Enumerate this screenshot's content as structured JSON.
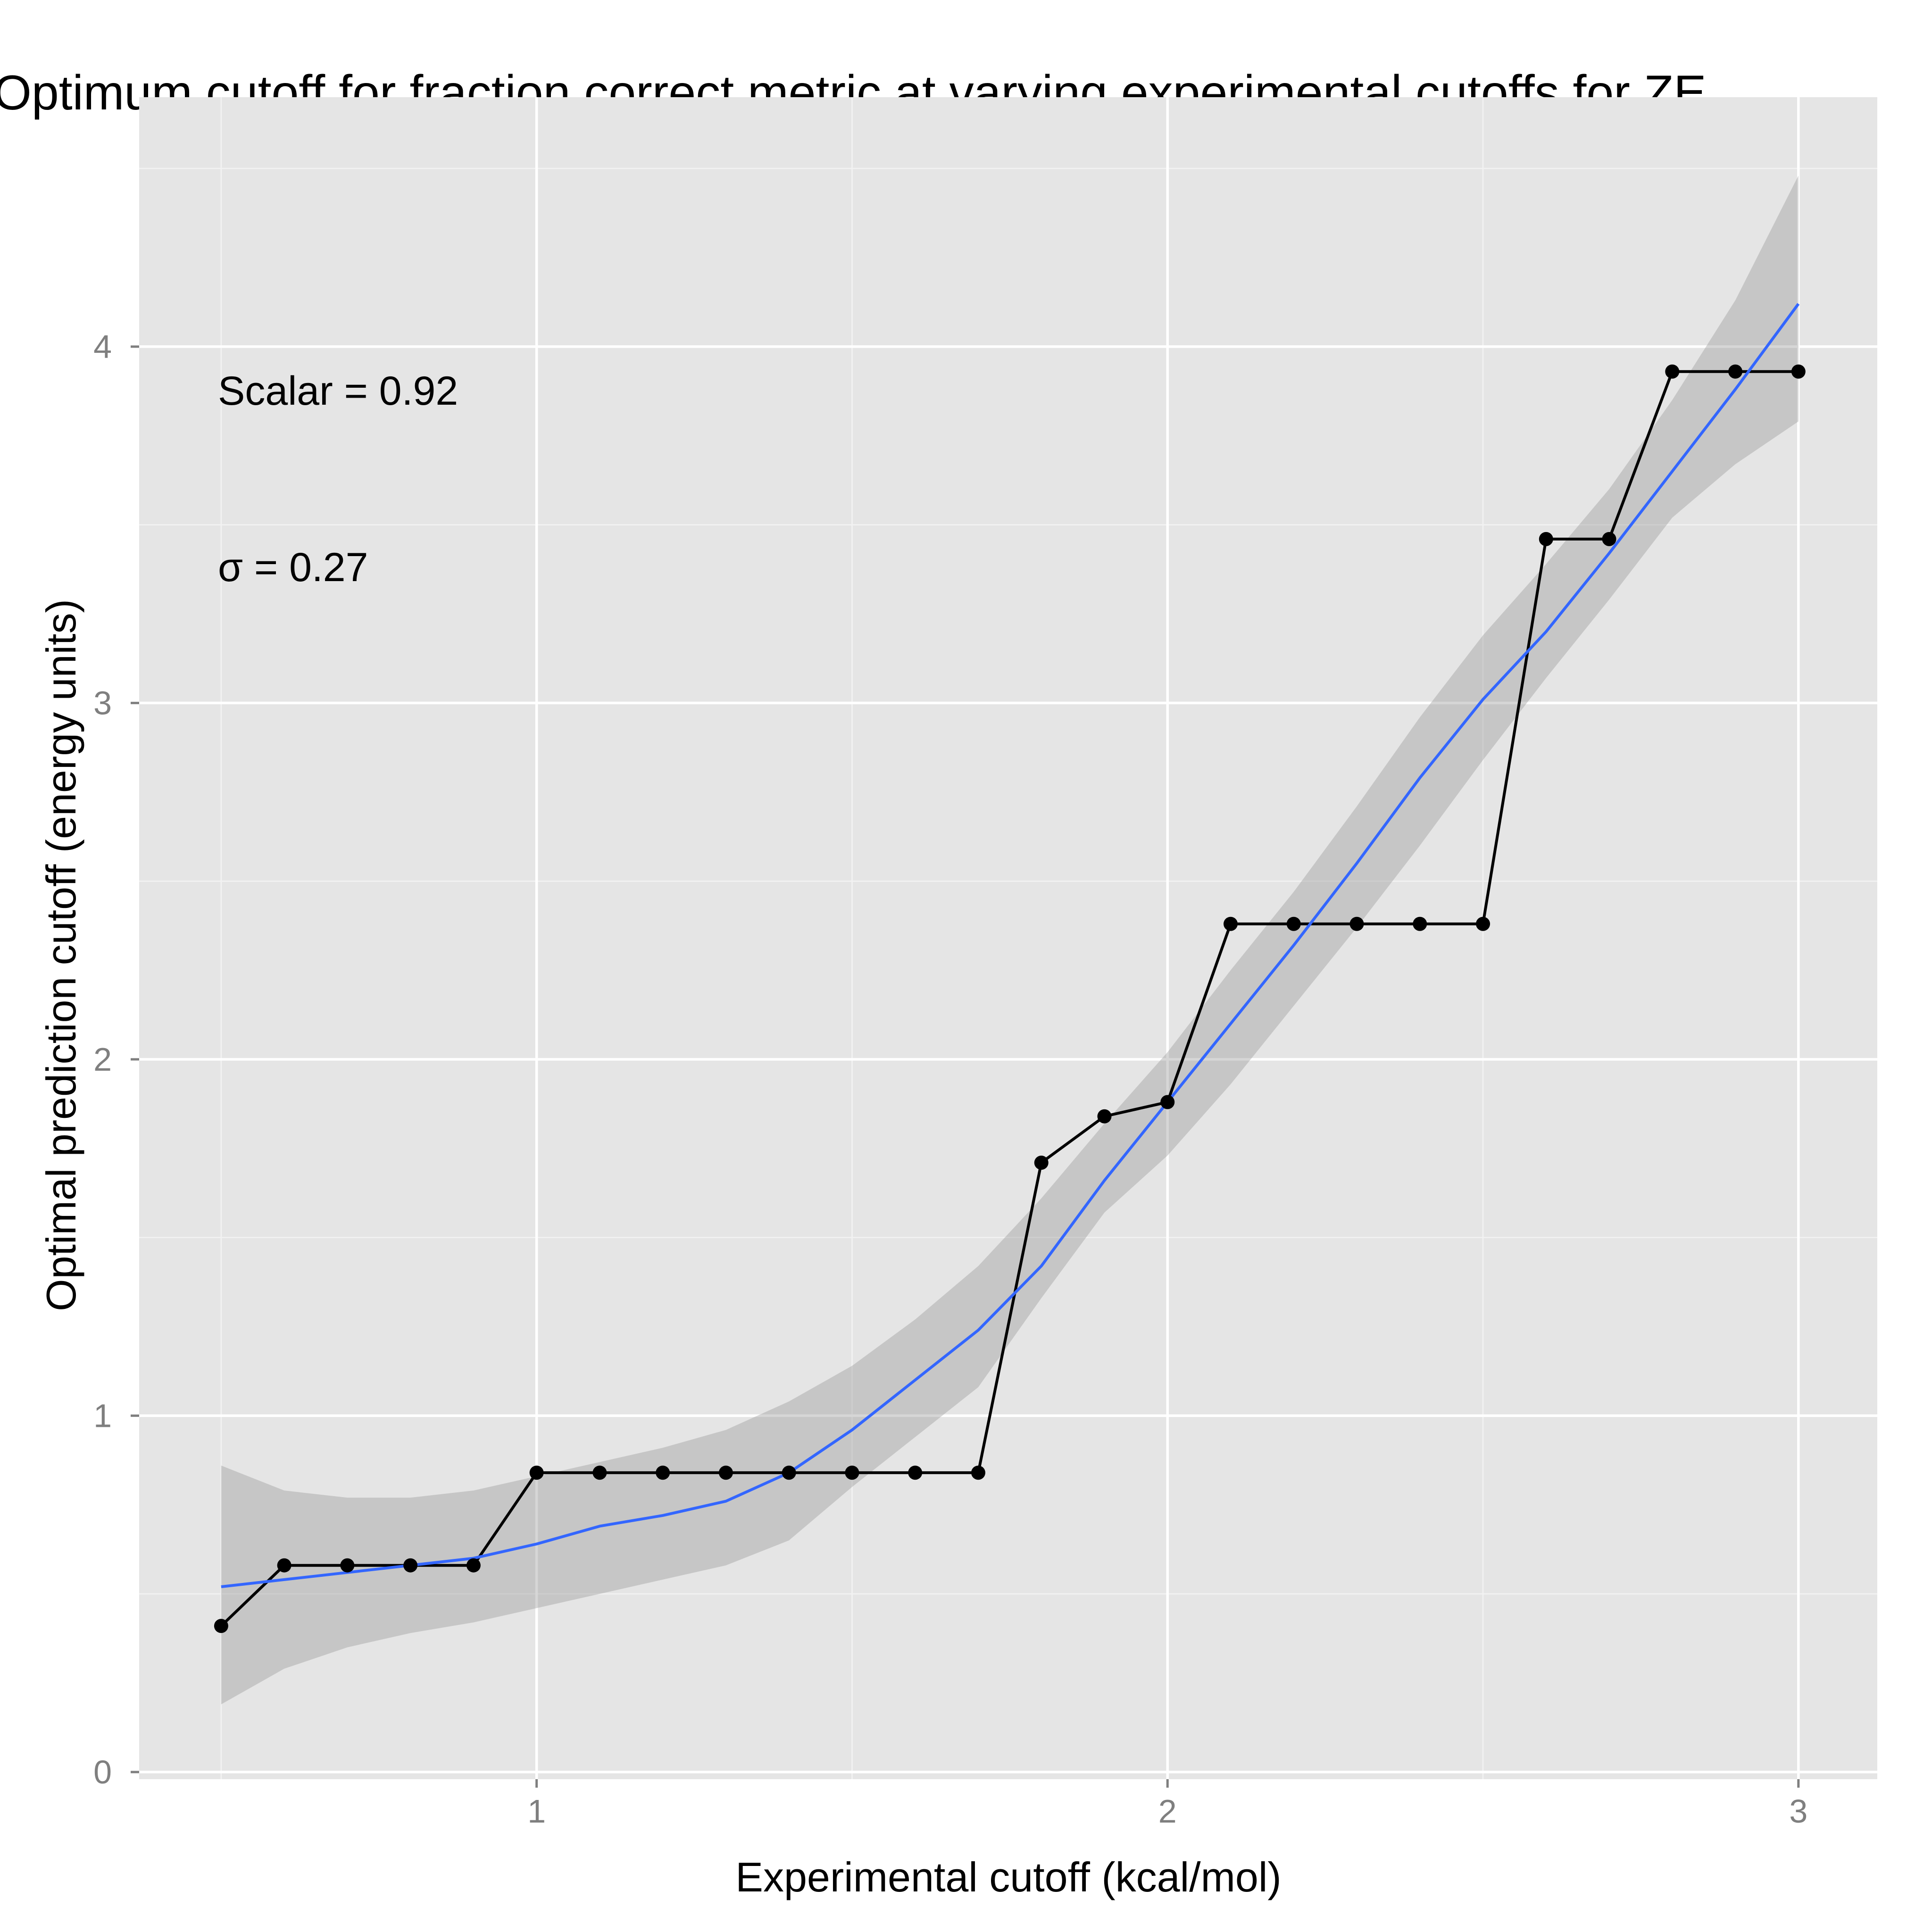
{
  "chart_data": {
    "type": "line",
    "title": "Optimum cutoff for fraction correct metric at varying experimental cutoffs for ZE",
    "xlabel": "Experimental cutoff (kcal/mol)",
    "ylabel": "Optimal prediction cutoff (energy units)",
    "xlim": [
      0.37,
      3.125
    ],
    "ylim": [
      -0.02,
      4.7
    ],
    "x_ticks": [
      1,
      2,
      3
    ],
    "x_tick_labels": [
      "1",
      "2",
      "3"
    ],
    "y_ticks": [
      0,
      1,
      2,
      3,
      4
    ],
    "y_tick_labels": [
      "0",
      "1",
      "2",
      "3",
      "4"
    ],
    "grid": true,
    "annotations": [
      {
        "id": "scalar",
        "text": "Scalar = 0.92",
        "x": 0.5,
        "y": 3.85
      },
      {
        "id": "sigma",
        "text": "σ = 0.27",
        "x": 0.5,
        "y": 3.35
      }
    ],
    "series": [
      {
        "kind": "line_points",
        "color": "#000000",
        "x": [
          0.5,
          0.6,
          0.7,
          0.8,
          0.9,
          1.0,
          1.1,
          1.2,
          1.3,
          1.4,
          1.5,
          1.6,
          1.7,
          1.8,
          1.9,
          2.0,
          2.1,
          2.2,
          2.3,
          2.4,
          2.5,
          2.6,
          2.7,
          2.8,
          2.9,
          3.0
        ],
        "y": [
          0.41,
          0.58,
          0.58,
          0.58,
          0.58,
          0.84,
          0.84,
          0.84,
          0.84,
          0.84,
          0.84,
          0.84,
          0.84,
          1.71,
          1.84,
          1.88,
          2.38,
          2.38,
          2.38,
          2.38,
          2.38,
          3.46,
          3.46,
          3.93,
          3.93,
          3.93
        ]
      },
      {
        "kind": "smooth",
        "color": "#3366ff",
        "band_color": "#999999",
        "x": [
          0.5,
          0.6,
          0.7,
          0.8,
          0.9,
          1.0,
          1.1,
          1.2,
          1.3,
          1.4,
          1.5,
          1.6,
          1.7,
          1.8,
          1.9,
          2.0,
          2.1,
          2.2,
          2.3,
          2.4,
          2.5,
          2.6,
          2.7,
          2.8,
          2.9,
          3.0
        ],
        "y": [
          0.52,
          0.54,
          0.56,
          0.58,
          0.6,
          0.64,
          0.69,
          0.72,
          0.76,
          0.84,
          0.96,
          1.1,
          1.24,
          1.42,
          1.66,
          1.88,
          2.1,
          2.32,
          2.55,
          2.79,
          3.01,
          3.2,
          3.42,
          3.65,
          3.88,
          4.12
        ],
        "ymin": [
          0.19,
          0.29,
          0.35,
          0.39,
          0.42,
          0.46,
          0.5,
          0.54,
          0.58,
          0.65,
          0.8,
          0.94,
          1.08,
          1.33,
          1.57,
          1.73,
          1.93,
          2.15,
          2.37,
          2.6,
          2.84,
          3.07,
          3.29,
          3.52,
          3.67,
          3.79
        ],
        "ymax": [
          0.86,
          0.79,
          0.77,
          0.77,
          0.79,
          0.83,
          0.87,
          0.91,
          0.96,
          1.04,
          1.14,
          1.27,
          1.42,
          1.61,
          1.82,
          2.02,
          2.25,
          2.47,
          2.71,
          2.96,
          3.19,
          3.39,
          3.6,
          3.85,
          4.13,
          4.48
        ]
      }
    ]
  }
}
